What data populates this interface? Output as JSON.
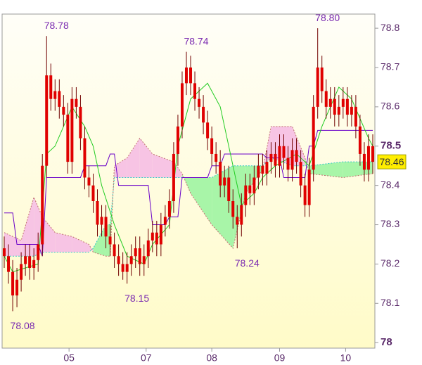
{
  "chart_data": {
    "type": "candlestick",
    "xlim": [
      -0.5,
      87.5
    ],
    "xticks": [
      {
        "value": 15.3,
        "label": "05"
      },
      {
        "value": 33.5,
        "label": "07"
      },
      {
        "value": 49,
        "label": "08"
      },
      {
        "value": 65,
        "label": "09"
      },
      {
        "value": 80.6,
        "label": "10"
      }
    ],
    "ylim": [
      77.986,
      78.836
    ],
    "yticks": [
      {
        "value": 78,
        "label": "78",
        "major": true
      },
      78.1,
      78.2,
      78.3,
      78.4,
      {
        "value": 78.5,
        "label": "78.5",
        "major": true
      },
      78.6,
      78.7,
      78.8
    ],
    "candle_color": "#e00000",
    "wick_color": "#700000",
    "open": [
      78.24,
      78.22,
      78.18,
      78.12,
      78.16,
      78.2,
      78.22,
      78.19,
      78.21,
      78.25,
      78.45,
      78.68,
      78.62,
      78.64,
      78.6,
      78.58,
      78.46,
      78.62,
      78.6,
      78.52,
      78.42,
      78.4,
      78.36,
      78.3,
      78.32,
      78.27,
      78.25,
      78.22,
      78.2,
      78.18,
      78.2,
      78.22,
      78.24,
      78.2,
      78.22,
      78.26,
      78.28,
      78.25,
      78.3,
      78.32,
      78.36,
      78.48,
      78.55,
      78.66,
      78.7,
      78.66,
      78.62,
      78.6,
      78.56,
      78.52,
      78.48,
      78.46,
      78.4,
      78.42,
      78.36,
      78.32,
      78.3,
      78.35,
      78.4,
      78.38,
      78.42,
      78.45,
      78.43,
      78.46,
      78.48,
      78.45,
      78.5,
      78.47,
      78.44,
      78.49,
      78.46,
      78.4,
      78.35,
      78.44,
      78.6,
      78.7,
      78.64,
      78.6,
      78.62,
      78.58,
      78.6,
      78.62,
      78.58,
      78.6,
      78.55,
      78.48,
      78.44,
      78.5
    ],
    "high": [
      78.27,
      78.25,
      78.21,
      78.19,
      78.23,
      78.25,
      78.25,
      78.24,
      78.28,
      78.48,
      78.78,
      78.71,
      78.67,
      78.67,
      78.63,
      78.61,
      78.65,
      78.65,
      78.63,
      78.55,
      78.45,
      78.43,
      78.39,
      78.35,
      78.35,
      78.3,
      78.28,
      78.25,
      78.23,
      78.23,
      78.25,
      78.27,
      78.27,
      78.25,
      78.29,
      78.31,
      78.31,
      78.33,
      78.35,
      78.39,
      78.51,
      78.58,
      78.69,
      78.74,
      78.73,
      78.69,
      78.65,
      78.63,
      78.59,
      78.55,
      78.51,
      78.49,
      78.45,
      78.45,
      78.39,
      78.35,
      78.38,
      78.43,
      78.43,
      78.45,
      78.48,
      78.48,
      78.49,
      78.51,
      78.51,
      78.53,
      78.53,
      78.5,
      78.52,
      78.52,
      78.49,
      78.43,
      78.47,
      78.63,
      78.8,
      78.73,
      78.67,
      78.65,
      78.65,
      78.63,
      78.65,
      78.65,
      78.63,
      78.63,
      78.58,
      78.51,
      78.53,
      78.53
    ],
    "low": [
      78.19,
      78.15,
      78.08,
      78.09,
      78.13,
      78.17,
      78.16,
      78.16,
      78.18,
      78.22,
      78.42,
      78.59,
      78.59,
      78.57,
      78.55,
      78.43,
      78.43,
      78.57,
      78.49,
      78.39,
      78.37,
      78.33,
      78.27,
      78.27,
      78.24,
      78.22,
      78.19,
      78.17,
      78.16,
      78.15,
      78.17,
      78.19,
      78.17,
      78.17,
      78.19,
      78.23,
      78.22,
      78.22,
      78.27,
      78.29,
      78.33,
      78.45,
      78.52,
      78.63,
      78.63,
      78.59,
      78.57,
      78.53,
      78.49,
      78.45,
      78.43,
      78.37,
      78.37,
      78.33,
      78.29,
      78.24,
      78.27,
      78.32,
      78.35,
      78.35,
      78.39,
      78.4,
      78.4,
      78.43,
      78.42,
      78.42,
      78.44,
      78.41,
      78.41,
      78.43,
      78.37,
      78.32,
      78.32,
      78.41,
      78.57,
      78.61,
      78.57,
      78.57,
      78.55,
      78.55,
      78.57,
      78.55,
      78.55,
      78.52,
      78.45,
      78.41,
      78.41,
      78.43
    ],
    "close": [
      78.22,
      78.18,
      78.12,
      78.16,
      78.2,
      78.22,
      78.19,
      78.21,
      78.25,
      78.45,
      78.68,
      78.62,
      78.64,
      78.6,
      78.58,
      78.46,
      78.62,
      78.6,
      78.52,
      78.42,
      78.4,
      78.36,
      78.3,
      78.32,
      78.27,
      78.25,
      78.22,
      78.2,
      78.18,
      78.2,
      78.22,
      78.24,
      78.2,
      78.22,
      78.26,
      78.28,
      78.25,
      78.3,
      78.32,
      78.36,
      78.48,
      78.55,
      78.66,
      78.7,
      78.66,
      78.62,
      78.6,
      78.56,
      78.52,
      78.48,
      78.46,
      78.4,
      78.42,
      78.36,
      78.32,
      78.3,
      78.35,
      78.4,
      78.38,
      78.42,
      78.45,
      78.43,
      78.46,
      78.48,
      78.45,
      78.5,
      78.47,
      78.44,
      78.49,
      78.46,
      78.4,
      78.35,
      78.44,
      78.6,
      78.7,
      78.64,
      78.6,
      78.62,
      78.58,
      78.6,
      78.62,
      78.58,
      78.6,
      78.55,
      78.48,
      78.44,
      78.5,
      78.46
    ],
    "lines": [
      {
        "color": "#6a00c8",
        "x": [
          0,
          2,
          3,
          8,
          9,
          10,
          18,
          19,
          24,
          25,
          26,
          27,
          34,
          35,
          38,
          39,
          41,
          42,
          48,
          49,
          51,
          52,
          61,
          62,
          65,
          66,
          71,
          72,
          73,
          74,
          87
        ],
        "values": [
          78.33,
          78.33,
          78.25,
          78.25,
          78.22,
          78.42,
          78.42,
          78.45,
          78.45,
          78.48,
          78.48,
          78.4,
          78.4,
          78.3,
          78.3,
          78.32,
          78.32,
          78.42,
          78.42,
          78.45,
          78.45,
          78.48,
          78.48,
          78.47,
          78.47,
          78.42,
          78.42,
          78.5,
          78.5,
          78.54,
          78.54
        ]
      },
      {
        "color": "#22cc22",
        "x": [
          0,
          2,
          8,
          10,
          12,
          16,
          19,
          21,
          23,
          26,
          29,
          33,
          35,
          39,
          41,
          44,
          48,
          51,
          52,
          54,
          56,
          59,
          61,
          64,
          69,
          72,
          75,
          79,
          82,
          86,
          87
        ],
        "values": [
          78.22,
          78.18,
          78.2,
          78.48,
          78.5,
          78.6,
          78.55,
          78.5,
          78.4,
          78.3,
          78.22,
          78.2,
          78.25,
          78.3,
          78.5,
          78.62,
          78.66,
          78.6,
          78.55,
          78.45,
          78.35,
          78.38,
          78.42,
          78.45,
          78.48,
          78.45,
          78.55,
          78.65,
          78.62,
          78.52,
          78.5
        ]
      }
    ],
    "cloud": {
      "x": [
        0,
        4,
        7,
        9,
        12,
        16,
        20,
        21,
        24,
        25,
        26,
        29,
        32,
        35,
        40,
        42,
        44,
        49,
        54,
        57,
        61,
        63,
        68,
        71,
        72,
        80,
        87
      ],
      "span_a": [
        78.22,
        78.22,
        78.22,
        78.23,
        78.23,
        78.23,
        78.23,
        78.24,
        78.3,
        78.3,
        78.42,
        78.42,
        78.42,
        78.42,
        78.42,
        78.42,
        78.42,
        78.42,
        78.45,
        78.45,
        78.45,
        78.47,
        78.45,
        78.45,
        78.45,
        78.46,
        78.46
      ],
      "span_b": [
        78.28,
        78.26,
        78.37,
        78.32,
        78.28,
        78.27,
        78.25,
        78.23,
        78.22,
        78.22,
        78.45,
        78.47,
        78.52,
        78.48,
        78.46,
        78.43,
        78.38,
        78.3,
        78.24,
        78.38,
        78.44,
        78.55,
        78.55,
        78.47,
        78.43,
        78.42,
        78.43
      ],
      "span_a_color": "#33c8c8",
      "span_b_color": "#c07070",
      "bear_fill": "#f7c4e4",
      "bull_fill": "#a8f5a8"
    },
    "annotations": [
      {
        "x": 10,
        "value": 78.78,
        "position": "above"
      },
      {
        "x": 43,
        "value": 78.74,
        "position": "above"
      },
      {
        "x": 74,
        "value": 78.8,
        "label": "78.80",
        "position": "above"
      },
      {
        "x": 55,
        "value": 78.24,
        "position": "below"
      },
      {
        "x": 29,
        "value": 78.15,
        "position": "below"
      },
      {
        "x": 2,
        "value": 78.08,
        "position": "below"
      }
    ],
    "last_price": 78.46
  }
}
